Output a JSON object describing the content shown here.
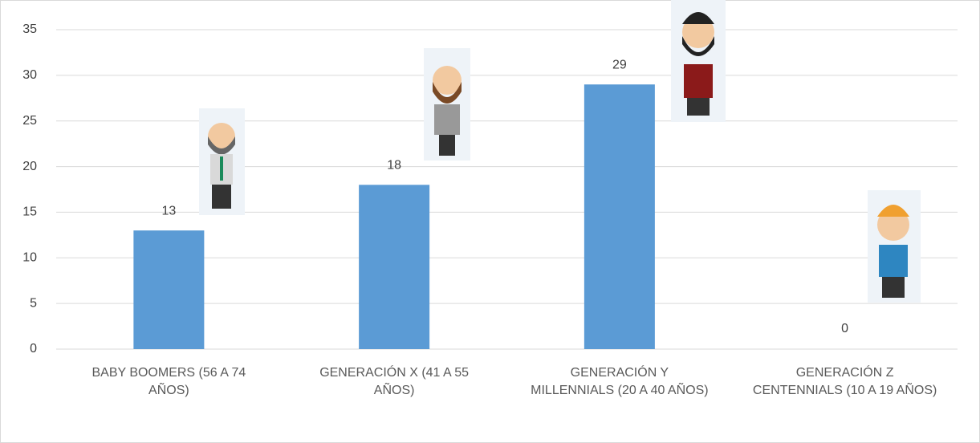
{
  "chart_data": {
    "type": "bar",
    "categories": [
      "BABY BOOMERS (56 A 74 AÑOS)",
      "GENERACIÓN X (41 A 55 AÑOS)",
      "GENERACIÓN Y MILLENNIALS (20 A 40 AÑOS)",
      "GENERACIÓN Z CENTENNIALS (10 A 19 AÑOS)"
    ],
    "values": [
      13,
      18,
      29,
      0
    ],
    "color": "#5b9bd5",
    "ylim": [
      0,
      35
    ],
    "yticks": [
      0,
      5,
      10,
      15,
      20,
      25,
      30,
      35
    ],
    "grid": true
  }
}
